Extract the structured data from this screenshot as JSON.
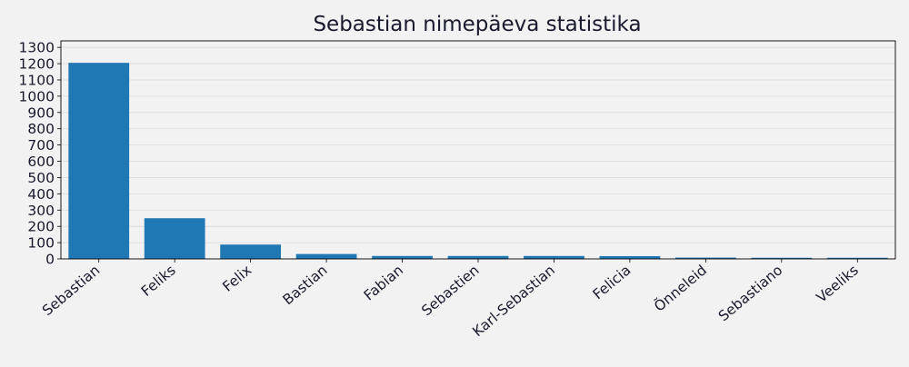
{
  "chart_data": {
    "type": "bar",
    "title": "Sebastian nimepäeva statistika",
    "xlabel": "",
    "ylabel": "",
    "categories": [
      "Sebastian",
      "Feliks",
      "Felix",
      "Bastian",
      "Fabian",
      "Sebastien",
      "Karl-Sebastian",
      "Felicia",
      "Õnneleid",
      "Sebastiano",
      "Veeliks"
    ],
    "values": [
      1205,
      250,
      88,
      30,
      18,
      18,
      18,
      17,
      8,
      7,
      7
    ],
    "yticks": [
      0,
      100,
      200,
      300,
      400,
      500,
      600,
      700,
      800,
      900,
      1000,
      1100,
      1200,
      1300
    ],
    "ylim": [
      0,
      1340
    ],
    "grid": "y",
    "legend": "none",
    "bar_color": "#1f77b4",
    "background_color": "#f2f2f2",
    "grid_color": "#d9d9d9",
    "text_color": "#1a1a2e"
  }
}
